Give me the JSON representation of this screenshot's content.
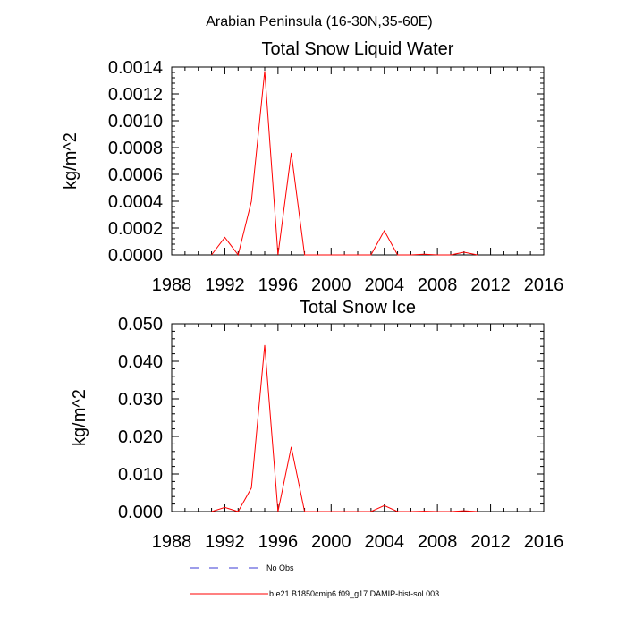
{
  "figure_title": "Arabian Peninsula (16-30N,35-60E)",
  "colors": {
    "model": "#ff0000",
    "obs": "#3b3bd6",
    "axes": "#000000"
  },
  "legend": {
    "entries": [
      {
        "label": "No Obs",
        "style": "dashed",
        "color": "#3b3bd6"
      },
      {
        "label": "b.e21.B1850cmip6.f09_g17.DAMIP-hist-sol.003",
        "style": "solid",
        "color": "#ff0000"
      }
    ]
  },
  "chart_data": [
    {
      "type": "line",
      "title": "Total Snow Liquid Water",
      "xlabel": "",
      "ylabel": "kg/m^2",
      "xlim": [
        1988,
        2016
      ],
      "ylim": [
        0,
        0.0014
      ],
      "xticks": [
        1988,
        1992,
        1996,
        2000,
        2004,
        2008,
        2012,
        2016
      ],
      "xtick_labels": [
        "1988",
        "1992",
        "1996",
        "2000",
        "2004",
        "2008",
        "2012",
        "2016"
      ],
      "yticks": [
        0,
        0.0002,
        0.0004,
        0.0006,
        0.0008,
        0.001,
        0.0012,
        0.0014
      ],
      "ytick_labels": [
        "0.0000",
        "0.0002",
        "0.0004",
        "0.0006",
        "0.0008",
        "0.0010",
        "0.0012",
        "0.0014"
      ],
      "series": [
        {
          "name": "b.e21.B1850cmip6.f09_g17.DAMIP-hist-sol.003",
          "color": "#ff0000",
          "x": [
            1991,
            1992,
            1993,
            1994,
            1995,
            1996,
            1997,
            1998,
            1999,
            2000,
            2001,
            2002,
            2003,
            2004,
            2005,
            2006,
            2007,
            2008,
            2009,
            2010,
            2011
          ],
          "y": [
            0,
            0.00013,
            0,
            0.0004,
            0.00137,
            0,
            0.00076,
            0,
            0,
            0,
            0,
            0,
            0,
            0.00018,
            0,
            0,
            5e-06,
            0,
            0,
            2e-05,
            0
          ]
        }
      ]
    },
    {
      "type": "line",
      "title": "Total Snow Ice",
      "xlabel": "",
      "ylabel": "kg/m^2",
      "xlim": [
        1988,
        2016
      ],
      "ylim": [
        0,
        0.05
      ],
      "xticks": [
        1988,
        1992,
        1996,
        2000,
        2004,
        2008,
        2012,
        2016
      ],
      "xtick_labels": [
        "1988",
        "1992",
        "1996",
        "2000",
        "2004",
        "2008",
        "2012",
        "2016"
      ],
      "yticks": [
        0,
        0.01,
        0.02,
        0.03,
        0.04,
        0.05
      ],
      "ytick_labels": [
        "0.000",
        "0.010",
        "0.020",
        "0.030",
        "0.040",
        "0.050"
      ],
      "series": [
        {
          "name": "b.e21.B1850cmip6.f09_g17.DAMIP-hist-sol.003",
          "color": "#ff0000",
          "x": [
            1991,
            1992,
            1993,
            1994,
            1995,
            1996,
            1997,
            1998,
            1999,
            2000,
            2001,
            2002,
            2003,
            2004,
            2005,
            2006,
            2007,
            2008,
            2009,
            2010,
            2011
          ],
          "y": [
            0,
            0.0011,
            0,
            0.0063,
            0.0443,
            0,
            0.0172,
            0,
            0,
            0,
            0,
            0,
            0,
            0.0016,
            0,
            0,
            0.0001,
            0,
            0,
            0.0002,
            0
          ]
        }
      ]
    }
  ]
}
